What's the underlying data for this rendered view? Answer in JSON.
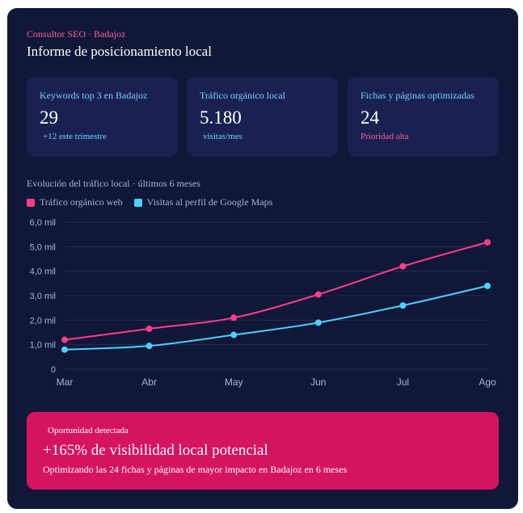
{
  "header": {
    "eyebrow": "Consultor SEO · Badajoz",
    "title": "Informe de posicionamiento local"
  },
  "kpis": [
    {
      "label": "Keywords top 3 en Badajoz",
      "value": "29",
      "sub": "+12 este trimestre"
    },
    {
      "label": "Tráfico orgánico local",
      "value": "5.180",
      "sub": "visitas/mes"
    },
    {
      "label": "Fichas y páginas optimizadas",
      "value": "24",
      "sub": "Prioridad alta"
    }
  ],
  "chart_section": {
    "caption": "Evolución del tráfico local · últimos 6 meses"
  },
  "colors": {
    "accent_pink": "#ff3d8b",
    "accent_cyan": "#4dd0ff",
    "card_bg": "#111738",
    "banner_bg": "#d5145f"
  },
  "chart_data": {
    "type": "line",
    "x": [
      "Mar",
      "Abr",
      "May",
      "Jun",
      "Jul",
      "Ago"
    ],
    "series": [
      {
        "name": "Tráfico orgánico web",
        "color": "#ff3d8b",
        "values": [
          1200,
          1650,
          2100,
          3050,
          4200,
          5180
        ]
      },
      {
        "name": "Visitas al perfil de Google Maps",
        "color": "#4dd0ff",
        "values": [
          800,
          950,
          1400,
          1900,
          2600,
          3400
        ]
      }
    ],
    "ylim": [
      0,
      6000
    ],
    "yticks": [
      0,
      1000,
      2000,
      3000,
      4000,
      5000,
      6000
    ],
    "ytick_labels": [
      "0",
      "1,0 mil",
      "2,0 mil",
      "3,0 mil",
      "4,0 mil",
      "5,0 mil",
      "6,0 mil"
    ],
    "grid": true,
    "legend": "top-left"
  },
  "opportunity": {
    "tag": "Oportunidad detectada",
    "headline": "+165% de visibilidad local potencial",
    "detail": "Optimizando las 24 fichas y páginas de mayor impacto en Badajoz en 6 meses"
  }
}
